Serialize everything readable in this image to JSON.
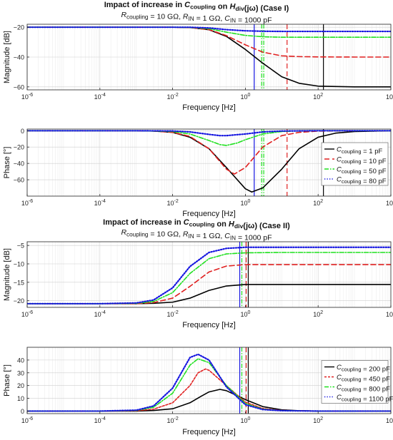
{
  "chart_data": [
    {
      "type": "line",
      "title_parts": [
        "Impact of increase in ",
        "C",
        "coupling",
        " on ",
        "H",
        "div",
        "(",
        "jω",
        ") (Case I)"
      ],
      "subtitle_parts": [
        "R",
        "coupling",
        " = 10 GΩ, ",
        "R",
        "IN",
        " = 1 GΩ, ",
        "C",
        "IN",
        " = 1000 pF"
      ],
      "xlabel": "Frequency [Hz]",
      "ylabel": "Magnitude [dB]",
      "xscale": "log",
      "xlim": [
        1e-06,
        10000.0
      ],
      "ylim": [
        -62,
        -18
      ],
      "yticks": [
        -60,
        -40,
        -20
      ],
      "grid": true,
      "legend": "none",
      "series": [
        {
          "color": "#000000",
          "dash": "solid",
          "x": [
            1e-06,
            0.0001,
            0.001,
            0.01,
            0.03,
            0.1,
            0.3,
            1,
            3,
            10,
            30,
            100,
            1000,
            10000
          ],
          "y": [
            -20.0,
            -20.0,
            -20.0,
            -20.0,
            -20.2,
            -21.7,
            -26.1,
            -34.9,
            -44.1,
            -53.2,
            -57.6,
            -59.5,
            -60.0,
            -60.0
          ]
        },
        {
          "color": "#e02020",
          "dash": "7 4",
          "x": [
            1e-06,
            0.0001,
            0.001,
            0.01,
            0.03,
            0.1,
            0.3,
            1,
            3,
            10,
            30,
            100,
            1000,
            10000
          ],
          "y": [
            -20.0,
            -20.0,
            -20.0,
            -20.0,
            -20.2,
            -21.6,
            -25.6,
            -31.8,
            -36.7,
            -39.2,
            -39.7,
            -39.9,
            -40.0,
            -40.0
          ]
        },
        {
          "color": "#1fe01f",
          "dash": "6 2 1.5 2",
          "x": [
            1e-06,
            0.0001,
            0.001,
            0.01,
            0.03,
            0.1,
            0.3,
            1,
            3,
            10,
            30,
            100,
            1000,
            10000
          ],
          "y": [
            -20.0,
            -20.0,
            -20.0,
            -20.0,
            -20.1,
            -21.0,
            -23.3,
            -25.5,
            -26.4,
            -26.7,
            -26.7,
            -26.7,
            -26.7,
            -26.7
          ]
        },
        {
          "color": "#1515e0",
          "dash": "1.3 2.2",
          "x": [
            1e-06,
            0.0001,
            0.001,
            0.01,
            0.03,
            0.1,
            0.3,
            1,
            3,
            10,
            30,
            100,
            1000,
            10000
          ],
          "y": [
            -20.0,
            -20.0,
            -20.0,
            -20.0,
            -20.0,
            -20.5,
            -21.6,
            -22.4,
            -22.7,
            -22.8,
            -22.8,
            -22.8,
            -22.8,
            -22.8
          ]
        }
      ],
      "vlines": [
        {
          "x": 140,
          "color": "#000000",
          "dash": "solid"
        },
        {
          "x": 14,
          "color": "#e02020",
          "dash": "7 4"
        },
        {
          "x": 2.8,
          "color": "#1fe01f",
          "dash": "6 2 1.5 2"
        },
        {
          "x": 3.2,
          "color": "#1fe01f",
          "dash": "6 2 1.5 2"
        },
        {
          "x": 1.75,
          "color": "#1515e0",
          "dash": "solid"
        }
      ]
    },
    {
      "type": "line",
      "xlabel": "Frequency [Hz]",
      "ylabel": "Phase [°]",
      "xscale": "log",
      "xlim": [
        1e-06,
        10000.0
      ],
      "ylim": [
        -80,
        2
      ],
      "yticks": [
        -60,
        -40,
        -20,
        0
      ],
      "grid": true,
      "legend": "right",
      "series": [
        {
          "name_parts": [
            "C",
            "coupling",
            " = 1 pF"
          ],
          "color": "#000000",
          "dash": "solid",
          "x": [
            1e-06,
            0.0001,
            0.001,
            0.003,
            0.01,
            0.03,
            0.1,
            0.3,
            1,
            1.5,
            3,
            10,
            30,
            100,
            300,
            1000,
            10000
          ],
          "y": [
            0,
            0,
            0,
            -0.5,
            -2,
            -8,
            -22,
            -45,
            -71,
            -75,
            -70,
            -47,
            -22,
            -8,
            -3,
            -1,
            0
          ]
        },
        {
          "name_parts": [
            "C",
            "coupling",
            " = 10 pF"
          ],
          "color": "#e02020",
          "dash": "7 4",
          "x": [
            1e-06,
            0.0001,
            0.001,
            0.003,
            0.01,
            0.03,
            0.1,
            0.3,
            0.5,
            1,
            3,
            10,
            30,
            100,
            1000,
            10000
          ],
          "y": [
            0,
            0,
            0,
            -0.5,
            -2,
            -7,
            -22,
            -47,
            -53,
            -45,
            -20,
            -6,
            -2,
            -0.5,
            0,
            0
          ]
        },
        {
          "name_parts": [
            "C",
            "coupling",
            " = 50 pF"
          ],
          "color": "#1fe01f",
          "dash": "6 2 1.5 2",
          "x": [
            1e-06,
            0.0001,
            0.001,
            0.01,
            0.03,
            0.1,
            0.2,
            0.3,
            0.6,
            1,
            3,
            10,
            30,
            100,
            10000
          ],
          "y": [
            0,
            0,
            0,
            -1,
            -4,
            -12,
            -17,
            -18,
            -15,
            -11,
            -4,
            -1,
            -0.3,
            0,
            0
          ]
        },
        {
          "name_parts": [
            "C",
            "coupling",
            " = 80 pF"
          ],
          "color": "#1515e0",
          "dash": "1.3 2.2",
          "x": [
            1e-06,
            0.0001,
            0.001,
            0.01,
            0.03,
            0.1,
            0.2,
            0.3,
            1,
            3,
            10,
            100,
            10000
          ],
          "y": [
            0,
            0,
            0,
            -0.3,
            -1.5,
            -4.5,
            -6,
            -6,
            -4,
            -1.5,
            -0.4,
            0,
            0
          ]
        }
      ],
      "vlines": [
        {
          "x": 140,
          "color": "#000000",
          "dash": "solid"
        },
        {
          "x": 14,
          "color": "#e02020",
          "dash": "7 4"
        },
        {
          "x": 2.8,
          "color": "#1fe01f",
          "dash": "6 2 1.5 2"
        },
        {
          "x": 3.2,
          "color": "#1fe01f",
          "dash": "6 2 1.5 2"
        },
        {
          "x": 1.75,
          "color": "#1515e0",
          "dash": "solid"
        }
      ]
    },
    {
      "type": "line",
      "title_parts": [
        "Impact of increase in ",
        "C",
        "coupling",
        " on ",
        "H",
        "div",
        "(",
        "jω",
        ") (Case II)"
      ],
      "subtitle_parts": [
        "R",
        "coupling",
        " = 10 GΩ, ",
        "R",
        "IN",
        " = 1 GΩ, ",
        "C",
        "IN",
        " = 1000 pF"
      ],
      "xlabel": "Frequency [Hz]",
      "ylabel": "Magnitude [dB]",
      "xscale": "log",
      "xlim": [
        1e-06,
        10000.0
      ],
      "ylim": [
        -21.8,
        -4
      ],
      "yticks": [
        -20,
        -15,
        -10,
        -5
      ],
      "grid": true,
      "legend": "none",
      "series": [
        {
          "color": "#000000",
          "dash": "solid",
          "x": [
            1e-06,
            0.0001,
            0.001,
            0.003,
            0.01,
            0.03,
            0.1,
            0.3,
            1,
            10,
            10000
          ],
          "y": [
            -20.8,
            -20.8,
            -20.8,
            -20.7,
            -20.4,
            -19.3,
            -17.2,
            -16.0,
            -15.6,
            -15.6,
            -15.6
          ]
        },
        {
          "color": "#e02020",
          "dash": "7 4",
          "x": [
            1e-06,
            0.0001,
            0.001,
            0.003,
            0.01,
            0.03,
            0.1,
            0.3,
            1,
            10,
            10000
          ],
          "y": [
            -20.8,
            -20.8,
            -20.8,
            -20.5,
            -19.3,
            -16.1,
            -12.2,
            -10.6,
            -10.2,
            -10.2,
            -10.2
          ]
        },
        {
          "color": "#1fe01f",
          "dash": "6 2 1.5 2",
          "x": [
            1e-06,
            0.0001,
            0.001,
            0.003,
            0.01,
            0.03,
            0.1,
            0.3,
            1,
            10,
            10000
          ],
          "y": [
            -20.8,
            -20.8,
            -20.7,
            -20.2,
            -17.8,
            -12.6,
            -8.6,
            -7.3,
            -7.0,
            -6.9,
            -6.9
          ]
        },
        {
          "color": "#1515e0",
          "dash": "1.3 2.2",
          "x": [
            1e-06,
            0.0001,
            0.001,
            0.003,
            0.01,
            0.03,
            0.1,
            0.3,
            1,
            10,
            10000
          ],
          "y": [
            -20.8,
            -20.8,
            -20.6,
            -19.8,
            -16.5,
            -10.7,
            -6.9,
            -5.8,
            -5.5,
            -5.5,
            -5.5
          ]
        }
      ],
      "vlines": [
        {
          "x": 1.2,
          "color": "#000000",
          "dash": "solid"
        },
        {
          "x": 1.05,
          "color": "#e02020",
          "dash": "7 4"
        },
        {
          "x": 0.8,
          "color": "#1fe01f",
          "dash": "6 2 1.5 2"
        },
        {
          "x": 0.7,
          "color": "#1515e0",
          "dash": "solid"
        }
      ]
    },
    {
      "type": "line",
      "xlabel": "Frequency [Hz]",
      "ylabel": "Phase [°]",
      "xscale": "log",
      "xlim": [
        1e-06,
        10000.0
      ],
      "ylim": [
        -2,
        50
      ],
      "yticks": [
        0,
        10,
        20,
        30,
        40
      ],
      "grid": true,
      "legend": "right",
      "series": [
        {
          "name_parts": [
            "C",
            "coupling",
            " = 200 pF"
          ],
          "color": "#000000",
          "dash": "solid",
          "x": [
            1e-06,
            0.0001,
            0.001,
            0.003,
            0.01,
            0.03,
            0.06,
            0.1,
            0.2,
            0.3,
            1,
            3,
            10,
            30,
            100,
            10000
          ],
          "y": [
            0,
            0,
            0,
            0.5,
            1.8,
            6.5,
            11.5,
            15,
            17,
            16,
            9,
            3.5,
            1,
            0.3,
            0,
            0
          ]
        },
        {
          "name_parts": [
            "C",
            "coupling",
            " = 450 pF"
          ],
          "color": "#e02020",
          "dash": "3 2",
          "x": [
            1e-06,
            0.0001,
            0.001,
            0.003,
            0.01,
            0.03,
            0.05,
            0.08,
            0.1,
            0.3,
            1,
            3,
            10,
            100,
            10000
          ],
          "y": [
            0,
            0,
            0.2,
            1.5,
            6.5,
            20,
            30,
            33,
            32,
            20,
            7,
            2,
            0.5,
            0,
            0
          ]
        },
        {
          "name_parts": [
            "C",
            "coupling",
            " = 800 pF"
          ],
          "color": "#1fe01f",
          "dash": "6 2 1.5 2",
          "x": [
            1e-06,
            0.0001,
            0.001,
            0.003,
            0.01,
            0.03,
            0.05,
            0.1,
            0.3,
            1,
            3,
            10,
            100,
            10000
          ],
          "y": [
            0,
            0,
            0.5,
            3,
            14,
            36,
            41,
            38,
            20,
            6,
            1.5,
            0.4,
            0,
            0
          ]
        },
        {
          "name_parts": [
            "C",
            "coupling",
            " = 1100 pF"
          ],
          "color": "#1515e0",
          "dash": "1.3 2.2",
          "x": [
            1e-06,
            0.0001,
            0.001,
            0.003,
            0.01,
            0.03,
            0.05,
            0.1,
            0.3,
            1,
            3,
            10,
            100,
            10000
          ],
          "y": [
            0,
            0,
            0.7,
            4,
            18,
            42,
            44.5,
            40,
            19,
            5,
            1.2,
            0.3,
            0,
            0
          ]
        }
      ],
      "vlines": [
        {
          "x": 1.2,
          "color": "#000000",
          "dash": "solid"
        },
        {
          "x": 1.05,
          "color": "#e02020",
          "dash": "7 4"
        },
        {
          "x": 0.8,
          "color": "#1fe01f",
          "dash": "6 2 1.5 2"
        },
        {
          "x": 0.7,
          "color": "#1515e0",
          "dash": "solid"
        }
      ]
    }
  ]
}
